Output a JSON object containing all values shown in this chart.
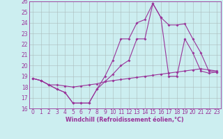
{
  "xlabel": "Windchill (Refroidissement éolien,°C)",
  "xlim": [
    -0.5,
    23.5
  ],
  "ylim": [
    16,
    26
  ],
  "xticks": [
    0,
    1,
    2,
    3,
    4,
    5,
    6,
    7,
    8,
    9,
    10,
    11,
    12,
    13,
    14,
    15,
    16,
    17,
    18,
    19,
    20,
    21,
    22,
    23
  ],
  "yticks": [
    16,
    17,
    18,
    19,
    20,
    21,
    22,
    23,
    24,
    25,
    26
  ],
  "bg_color": "#cceef0",
  "line_color": "#993399",
  "grid_color": "#aabbbb",
  "line1_x": [
    0,
    1,
    2,
    3,
    4,
    5,
    6,
    7,
    8,
    9,
    10,
    11,
    12,
    13,
    14,
    15,
    16,
    17,
    18,
    19,
    20,
    21,
    22,
    23
  ],
  "line1_y": [
    18.8,
    18.6,
    18.2,
    17.8,
    17.5,
    16.5,
    16.5,
    16.5,
    17.8,
    18.5,
    19.2,
    20.0,
    20.5,
    22.5,
    22.5,
    25.8,
    24.5,
    19.0,
    19.0,
    22.5,
    21.2,
    19.5,
    19.3,
    19.4
  ],
  "line2_x": [
    0,
    1,
    2,
    3,
    4,
    5,
    6,
    7,
    8,
    9,
    10,
    11,
    12,
    13,
    14,
    15,
    16,
    17,
    18,
    19,
    20,
    21,
    22,
    23
  ],
  "line2_y": [
    18.8,
    18.6,
    18.2,
    17.8,
    17.5,
    16.5,
    16.5,
    16.5,
    17.8,
    19.0,
    20.5,
    22.5,
    22.5,
    24.0,
    24.3,
    25.8,
    24.5,
    23.8,
    23.8,
    23.9,
    22.5,
    21.2,
    19.5,
    19.4
  ],
  "line3_x": [
    0,
    1,
    2,
    3,
    4,
    5,
    6,
    7,
    8,
    9,
    10,
    11,
    12,
    13,
    14,
    15,
    16,
    17,
    18,
    19,
    20,
    21,
    22,
    23
  ],
  "line3_y": [
    18.8,
    18.6,
    18.2,
    18.2,
    18.1,
    18.0,
    18.1,
    18.2,
    18.3,
    18.5,
    18.6,
    18.7,
    18.8,
    18.9,
    19.0,
    19.1,
    19.2,
    19.3,
    19.4,
    19.5,
    19.6,
    19.7,
    19.6,
    19.5
  ],
  "tick_fontsize": 5.5,
  "xlabel_fontsize": 5.8,
  "linewidth": 0.8,
  "markersize": 2.0
}
